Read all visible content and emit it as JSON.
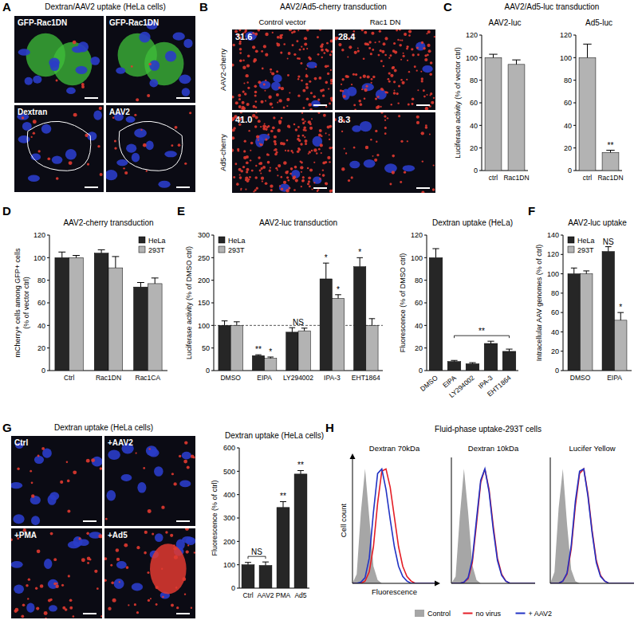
{
  "image_panels": [
    {
      "letter": "A",
      "title": "Dextran/AAV2 uptake (HeLa cells)",
      "labels": [
        "GFP-Rac1DN",
        "GFP-Rac1DN",
        "Dextran",
        "AAV2"
      ]
    },
    {
      "letter": "B",
      "title": "AAV2/Ad5-cherry transduction",
      "columns": [
        "Control vector",
        "Rac1 DN"
      ],
      "rows": [
        "AAV2-cherry",
        "Ad5-cherry"
      ],
      "values": [
        [
          "31.6",
          "28.4"
        ],
        [
          "41.0",
          "8.3"
        ]
      ]
    },
    {
      "letter": "G",
      "title": "Dextran uptake (HeLa cells)",
      "labels": [
        "Ctrl",
        "+AAV2",
        "+PMA",
        "+Ad5"
      ]
    }
  ],
  "chart_data": [
    {
      "type": "bar",
      "panel": "C",
      "supertitle": "AAV2/Ad5-luc transduction",
      "title": "AAV2-luc",
      "ylabel": [
        "Luciferase activity (% of vector ctrl)"
      ],
      "categories": [
        "ctrl",
        "Rac1DN"
      ],
      "values": [
        100,
        94
      ],
      "errors": [
        3,
        4
      ],
      "color": "#b3b3b3",
      "ylim": [
        0,
        120
      ],
      "yticks": [
        0,
        20,
        40,
        60,
        80,
        100,
        120
      ]
    },
    {
      "type": "bar",
      "title": "Ad5-luc",
      "categories": [
        "ctrl",
        "Rac1DN"
      ],
      "values": [
        100,
        16
      ],
      "errors": [
        12,
        2
      ],
      "color": "#b3b3b3",
      "ylim": [
        0,
        120
      ],
      "yticks": [
        0,
        20,
        40,
        60,
        80,
        100,
        120
      ],
      "annotations": [
        {
          "text": "**",
          "category": "Rac1DN"
        }
      ]
    },
    {
      "type": "bar",
      "panel": "D",
      "title": "AAV2-cherry transduction",
      "ylabel": [
        "mCherry+ cells among GFP+ cells",
        "(% of vector ctrl)"
      ],
      "categories": [
        "Ctrl",
        "Rac1DN",
        "Rac1CA"
      ],
      "series": [
        {
          "name": "HeLa",
          "color": "#262626",
          "values": [
            100,
            104,
            74
          ],
          "errors": [
            5,
            3,
            4
          ]
        },
        {
          "name": "293T",
          "color": "#b3b3b3",
          "values": [
            100,
            91,
            77
          ],
          "errors": [
            2,
            10,
            5
          ]
        }
      ],
      "ylim": [
        0,
        120
      ],
      "yticks": [
        0,
        20,
        40,
        60,
        80,
        100,
        120
      ],
      "legend": "upper right"
    },
    {
      "type": "bar",
      "panel": "E",
      "title": "AAV2-luc transduction",
      "ylabel": [
        "Luciferase activity (% of DMSO ctrl)"
      ],
      "categories": [
        "DMSO",
        "EIPA",
        "LY294002",
        "IPA-3",
        "EHT1864"
      ],
      "series": [
        {
          "name": "HeLa",
          "color": "#262626",
          "values": [
            100,
            33,
            85,
            203,
            230
          ],
          "errors": [
            10,
            2,
            10,
            35,
            20
          ]
        },
        {
          "name": "293T",
          "color": "#b3b3b3",
          "values": [
            100,
            27,
            88,
            160,
            100
          ],
          "errors": [
            8,
            3,
            6,
            8,
            15
          ]
        }
      ],
      "ylim": [
        0,
        300
      ],
      "yticks": [
        0,
        50,
        100,
        150,
        200,
        250,
        300
      ],
      "legend": "upper left",
      "reference_lines": [
        100
      ],
      "annotations": [
        {
          "text": "**",
          "category": "EIPA",
          "series": "HeLa"
        },
        {
          "text": "*",
          "category": "EIPA",
          "series": "293T"
        },
        {
          "text": "NS",
          "category": "LY294002"
        },
        {
          "text": "*",
          "category": "IPA-3",
          "series": "HeLa"
        },
        {
          "text": "*",
          "category": "IPA-3",
          "series": "293T"
        },
        {
          "text": "*",
          "category": "EHT1864",
          "series": "HeLa"
        }
      ]
    },
    {
      "type": "bar",
      "title": "Dextran uptake (HeLa)",
      "ylabel": [
        "Fluorescence (% of DMSO ctrl)"
      ],
      "categories": [
        "DMSO",
        "EIPA",
        "LY294002",
        "IPA-3",
        "EHT1864"
      ],
      "values": [
        100,
        8,
        6,
        24,
        17
      ],
      "errors": [
        8,
        1,
        1,
        2,
        2
      ],
      "color": "#262626",
      "ylim": [
        0,
        120
      ],
      "yticks": [
        0,
        20,
        40,
        60,
        80,
        100,
        120
      ],
      "annotations": [
        {
          "text": "**",
          "span": [
            "EIPA",
            "EHT1864"
          ]
        }
      ]
    },
    {
      "type": "bar",
      "panel": "F",
      "title": "AAV2-luc uptake",
      "ylabel": [
        "Intracellular AAV genomes (% of ctrl)"
      ],
      "categories": [
        "DMSO",
        "EIPA"
      ],
      "series": [
        {
          "name": "HeLa",
          "color": "#262626",
          "values": [
            100,
            123
          ],
          "errors": [
            6,
            5
          ]
        },
        {
          "name": "293T",
          "color": "#b3b3b3",
          "values": [
            100,
            52
          ],
          "errors": [
            3,
            8
          ]
        }
      ],
      "ylim": [
        0,
        140
      ],
      "yticks": [
        0,
        20,
        40,
        60,
        80,
        100,
        120,
        140
      ],
      "legend": "upper left",
      "annotations": [
        {
          "text": "NS",
          "category": "EIPA",
          "series": "HeLa"
        },
        {
          "text": "*",
          "category": "EIPA",
          "series": "293T"
        }
      ]
    },
    {
      "type": "bar",
      "title": "Dextran uptake (HeLa cells)",
      "ylabel": [
        "Fluorescence (% of ctrl)"
      ],
      "categories": [
        "Ctrl",
        "AAV2",
        "PMA",
        "Ad5"
      ],
      "values": [
        100,
        97,
        345,
        488
      ],
      "errors": [
        10,
        15,
        25,
        15
      ],
      "color": "#262626",
      "ylim": [
        0,
        600
      ],
      "yticks": [
        0,
        100,
        200,
        300,
        400,
        500,
        600
      ],
      "annotations": [
        {
          "text": "NS",
          "span": [
            "Ctrl",
            "AAV2"
          ]
        },
        {
          "text": "**",
          "category": "PMA"
        },
        {
          "text": "**",
          "category": "Ad5"
        }
      ]
    },
    {
      "type": "line",
      "panel": "H",
      "supertitle": "Fluid-phase uptake-293T cells",
      "title": "Dextran 70kDa",
      "xlabel": "Fluorescence",
      "ylabel": [
        "Cell count"
      ],
      "tick_labels": false,
      "legend": "bottom",
      "xlim": [
        0,
        100
      ],
      "ylim": [
        0,
        110
      ],
      "x": [
        0,
        5,
        10,
        15,
        20,
        25,
        30,
        35,
        40,
        45,
        50,
        55,
        60,
        65,
        70,
        75,
        80,
        85,
        90,
        95,
        100
      ],
      "series": [
        {
          "name": "Control",
          "type": "area",
          "color": "#a6a6a6",
          "values": [
            0,
            8,
            62,
            100,
            58,
            15,
            3,
            0,
            0,
            0,
            0,
            0,
            0,
            0,
            0,
            0,
            0,
            0,
            0,
            0,
            0
          ]
        },
        {
          "name": "no virus",
          "type": "line",
          "color": "#e41e26",
          "values": [
            0,
            0,
            0,
            2,
            10,
            32,
            70,
            98,
            100,
            84,
            58,
            32,
            15,
            6,
            2,
            0,
            0,
            0,
            0,
            0,
            0
          ]
        },
        {
          "name": "+ AAV2",
          "type": "line",
          "color": "#2233c4",
          "values": [
            0,
            0,
            1,
            5,
            22,
            62,
            96,
            100,
            82,
            56,
            32,
            15,
            6,
            2,
            0,
            0,
            0,
            0,
            0,
            0,
            0
          ]
        }
      ]
    },
    {
      "type": "line",
      "title": "Dextran 10kDa",
      "tick_labels": false,
      "xlim": [
        0,
        100
      ],
      "ylim": [
        0,
        110
      ],
      "x": [
        0,
        5,
        10,
        15,
        20,
        25,
        30,
        35,
        40,
        45,
        50,
        55,
        60,
        65,
        70,
        75,
        80,
        85,
        90,
        95,
        100
      ],
      "series": [
        {
          "type": "area",
          "color": "#a6a6a6",
          "values": [
            0,
            6,
            58,
            100,
            62,
            16,
            3,
            0,
            0,
            0,
            0,
            0,
            0,
            0,
            0,
            0,
            0,
            0,
            0,
            0,
            0
          ]
        },
        {
          "type": "line",
          "color": "#e41e26",
          "values": [
            0,
            0,
            0,
            1,
            4,
            18,
            52,
            88,
            100,
            82,
            50,
            22,
            8,
            2,
            0,
            0,
            0,
            0,
            0,
            0,
            0
          ]
        },
        {
          "type": "line",
          "color": "#2233c4",
          "values": [
            0,
            0,
            0,
            1,
            5,
            21,
            56,
            90,
            100,
            80,
            47,
            20,
            7,
            2,
            0,
            0,
            0,
            0,
            0,
            0,
            0
          ]
        }
      ]
    },
    {
      "type": "line",
      "title": "Lucifer Yellow",
      "tick_labels": false,
      "xlim": [
        0,
        100
      ],
      "ylim": [
        0,
        110
      ],
      "x": [
        0,
        5,
        10,
        15,
        20,
        25,
        30,
        35,
        40,
        45,
        50,
        55,
        60,
        65,
        70,
        75,
        80,
        85,
        90,
        95,
        100
      ],
      "series": [
        {
          "type": "area",
          "color": "#a6a6a6",
          "values": [
            0,
            10,
            66,
            100,
            52,
            12,
            2,
            0,
            0,
            0,
            0,
            0,
            0,
            0,
            0,
            0,
            0,
            0,
            0,
            0,
            0
          ]
        },
        {
          "type": "line",
          "color": "#e41e26",
          "values": [
            0,
            0,
            0,
            2,
            8,
            30,
            68,
            96,
            100,
            78,
            46,
            20,
            7,
            2,
            0,
            0,
            0,
            0,
            0,
            0,
            0
          ]
        },
        {
          "type": "line",
          "color": "#2233c4",
          "values": [
            0,
            0,
            0,
            2,
            9,
            33,
            72,
            98,
            100,
            76,
            44,
            18,
            6,
            2,
            0,
            0,
            0,
            0,
            0,
            0,
            0
          ]
        }
      ]
    }
  ]
}
